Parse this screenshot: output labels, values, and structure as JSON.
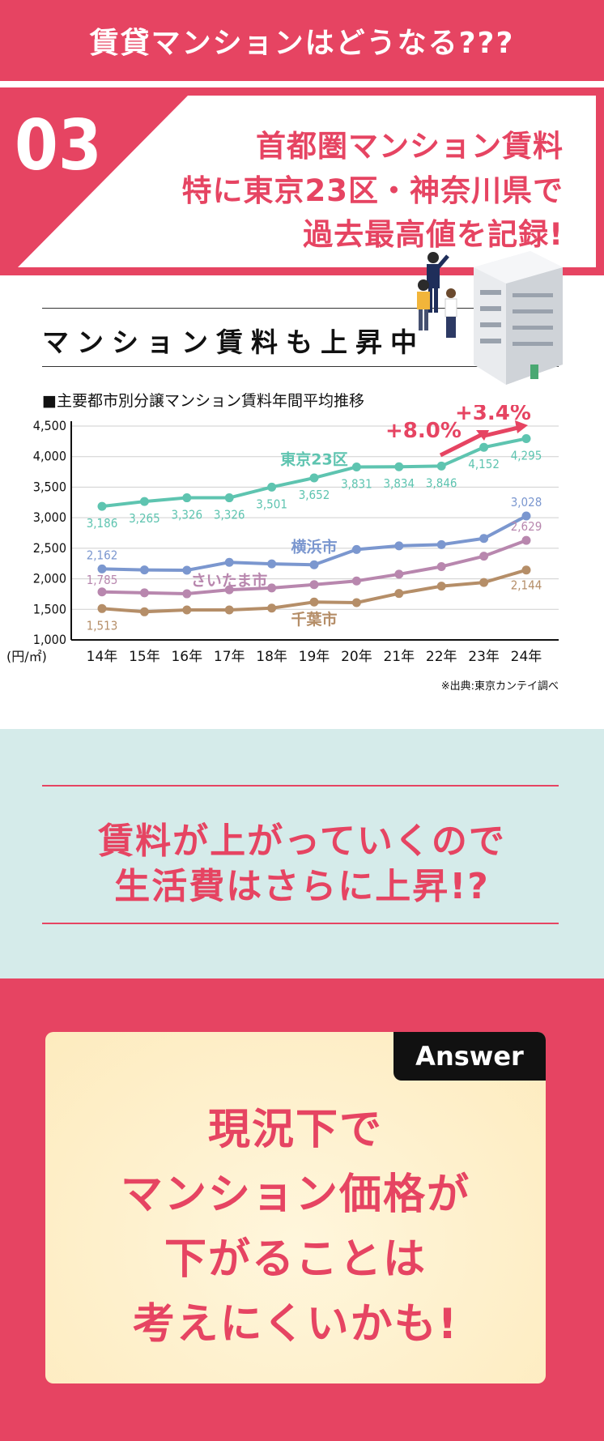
{
  "banner": {
    "title": "賃貸マンションはどうなる???"
  },
  "section": {
    "number": "03",
    "heading_lines": [
      "首都圏マンション賃料",
      "特に東京23区・神奈川県で",
      "過去最高値を記録!"
    ]
  },
  "chart_data": {
    "type": "line",
    "title": "マンション賃料も上昇中",
    "subtitle": "■主要都市別分譲マンション賃料年間平均推移",
    "ylabel": "(円/㎡)",
    "ylim": [
      1000,
      4500
    ],
    "yticks": [
      1000,
      1500,
      2000,
      2500,
      3000,
      3500,
      4000,
      4500
    ],
    "ytick_labels": [
      "1,000",
      "1,500",
      "2,000",
      "2,500",
      "3,000",
      "3,500",
      "4,000",
      "4,500"
    ],
    "categories": [
      "14年",
      "15年",
      "16年",
      "17年",
      "18年",
      "19年",
      "20年",
      "21年",
      "22年",
      "23年",
      "24年"
    ],
    "grid": true,
    "series": [
      {
        "name": "東京23区",
        "color": "#5ec4b0",
        "values": [
          3186,
          3265,
          3326,
          3326,
          3501,
          3652,
          3831,
          3834,
          3846,
          4152,
          4295
        ],
        "labels": [
          "3,186",
          "3,265",
          "3,326",
          "3,326",
          "3,501",
          "3,652",
          "3,831",
          "3,834",
          "3,846",
          "4,152",
          "4,295"
        ]
      },
      {
        "name": "横浜市",
        "color": "#7b97cf",
        "values": [
          2162,
          2145,
          2140,
          2270,
          2245,
          2230,
          2480,
          2540,
          2560,
          2660,
          3028
        ],
        "labels": {
          "0": "2,162",
          "10": "3,028"
        }
      },
      {
        "name": "さいたま市",
        "color": "#b887ae",
        "values": [
          1785,
          1770,
          1755,
          1820,
          1850,
          1905,
          1965,
          2075,
          2200,
          2370,
          2629
        ],
        "labels": {
          "0": "1,785",
          "10": "2,629"
        }
      },
      {
        "name": "千葉市",
        "color": "#b58e68",
        "values": [
          1513,
          1460,
          1490,
          1490,
          1520,
          1620,
          1610,
          1760,
          1880,
          1940,
          2144
        ],
        "labels": {
          "0": "1,513",
          "10": "2,144"
        }
      }
    ],
    "annotations": [
      "+8.0%",
      "+3.4%"
    ],
    "source": "※出典:東京カンテイ調べ"
  },
  "question": {
    "lines": [
      "賃料が上がっていくので",
      "生活費はさらに上昇!?"
    ]
  },
  "answer": {
    "badge": "Answer",
    "lines": [
      "現況下で",
      "マンション価格が",
      "下がることは",
      "考えにくいかも!"
    ]
  },
  "colors": {
    "accent": "#e64462",
    "mint_bg": "#d5ebea",
    "answer_card": "#fdebbe"
  }
}
